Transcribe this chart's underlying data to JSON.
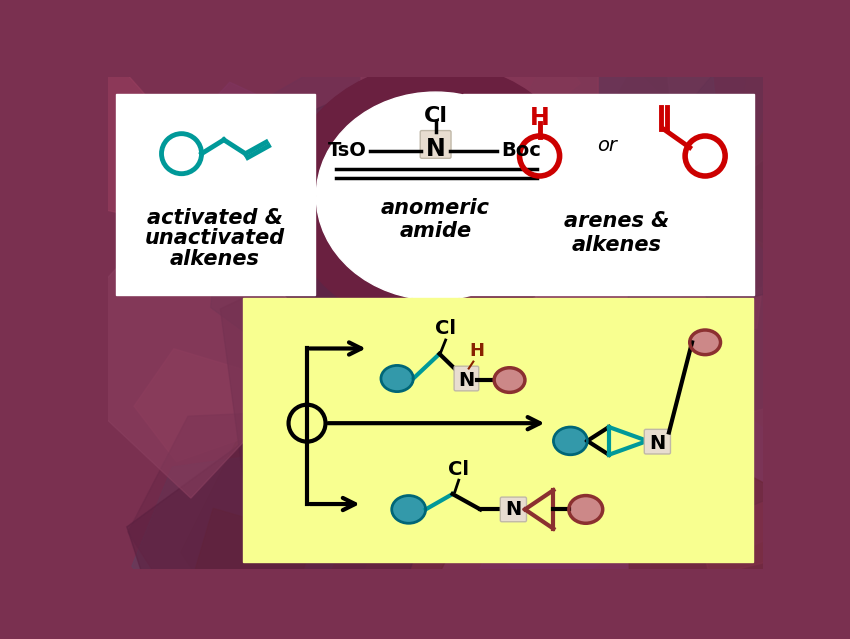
{
  "bg_base": "#7A3050",
  "white": "#FFFFFF",
  "teal_stroke": "#009999",
  "teal_fill": "#3399AA",
  "teal_light": "#88CCCC",
  "red": "#CC0000",
  "dark_red_circle": "#8B3030",
  "pink_fill": "#CC8888",
  "pink_light": "#DDAAAA",
  "yellow": "#F8FF90",
  "n_box_bg": "#E8DDD0",
  "n_box_edge": "#C0B8A8",
  "dark_red_h": "#882200",
  "black": "#000000",
  "ring_dark": "#7A2545",
  "text_left1": "activated &",
  "text_left2": "unactivated",
  "text_left3": "alkenes",
  "text_center1": "anomeric",
  "text_center2": "amide",
  "text_right1": "arenes &",
  "text_right2": "alkenes",
  "cl_text": "Cl",
  "tso_text": "TsO",
  "boc_text": "Boc",
  "n_text": "N",
  "h_text": "H",
  "or_text": "or"
}
